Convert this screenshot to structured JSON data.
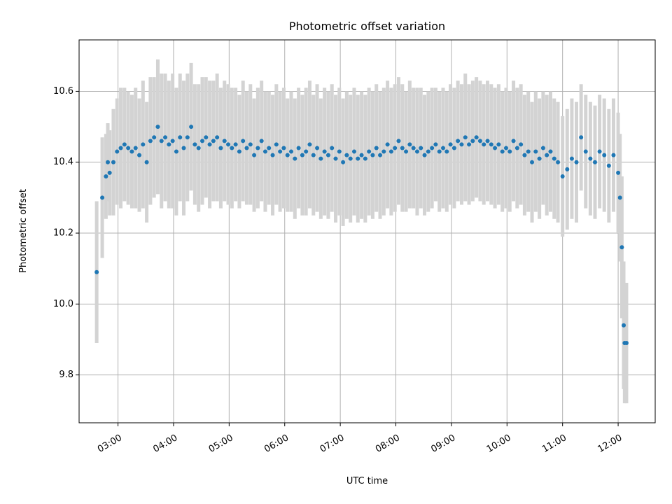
{
  "chart_data": {
    "type": "scatter",
    "title": "Photometric offset variation",
    "xlabel": "UTC time",
    "ylabel": "Photometric offset",
    "xlim": [
      "02:18",
      "12:40"
    ],
    "ylim": [
      9.665,
      10.745
    ],
    "x_ticks": [
      "03:00",
      "04:00",
      "05:00",
      "06:00",
      "07:00",
      "08:00",
      "09:00",
      "10:00",
      "11:00",
      "12:00"
    ],
    "y_ticks": [
      "9.8",
      "10.0",
      "10.2",
      "10.4",
      "10.6"
    ],
    "grid": true,
    "colors": {
      "points": "#1f77b4",
      "errorbars": "#d3d3d3",
      "grid": "#b0b0b0"
    },
    "series": [
      {
        "x": [
          "02:37",
          "02:43",
          "02:47",
          "02:49",
          "02:51",
          "02:55",
          "02:59",
          "03:03",
          "03:07",
          "03:11",
          "03:15",
          "03:19",
          "03:23",
          "03:27",
          "03:31",
          "03:35",
          "03:39",
          "03:43",
          "03:47",
          "03:51",
          "03:55",
          "03:59",
          "04:03",
          "04:07",
          "04:11",
          "04:15",
          "04:19",
          "04:23",
          "04:27",
          "04:31",
          "04:35",
          "04:39",
          "04:43",
          "04:47",
          "04:51",
          "04:55",
          "04:59",
          "05:03",
          "05:07",
          "05:11",
          "05:15",
          "05:19",
          "05:23",
          "05:27",
          "05:31",
          "05:35",
          "05:39",
          "05:43",
          "05:47",
          "05:51",
          "05:55",
          "05:59",
          "06:03",
          "06:07",
          "06:11",
          "06:15",
          "06:19",
          "06:23",
          "06:27",
          "06:31",
          "06:35",
          "06:39",
          "06:43",
          "06:47",
          "06:51",
          "06:55",
          "06:59",
          "07:03",
          "07:07",
          "07:11",
          "07:15",
          "07:19",
          "07:23",
          "07:27",
          "07:31",
          "07:35",
          "07:39",
          "07:43",
          "07:47",
          "07:51",
          "07:55",
          "07:59",
          "08:03",
          "08:07",
          "08:11",
          "08:15",
          "08:19",
          "08:23",
          "08:27",
          "08:31",
          "08:35",
          "08:39",
          "08:43",
          "08:47",
          "08:51",
          "08:55",
          "08:59",
          "09:03",
          "09:07",
          "09:11",
          "09:15",
          "09:19",
          "09:23",
          "09:27",
          "09:31",
          "09:35",
          "09:39",
          "09:43",
          "09:47",
          "09:51",
          "09:55",
          "09:59",
          "10:03",
          "10:07",
          "10:11",
          "10:15",
          "10:19",
          "10:23",
          "10:27",
          "10:31",
          "10:35",
          "10:39",
          "10:43",
          "10:47",
          "10:51",
          "10:55",
          "11:00",
          "11:05",
          "11:10",
          "11:15",
          "11:20",
          "11:25",
          "11:30",
          "11:35",
          "11:40",
          "11:45",
          "11:50",
          "11:55",
          "12:00",
          "12:02",
          "12:04",
          "12:06",
          "12:07",
          "12:09"
        ],
        "y": [
          10.09,
          10.3,
          10.36,
          10.4,
          10.37,
          10.4,
          10.43,
          10.44,
          10.45,
          10.44,
          10.43,
          10.44,
          10.42,
          10.45,
          10.4,
          10.46,
          10.47,
          10.5,
          10.46,
          10.47,
          10.45,
          10.46,
          10.43,
          10.47,
          10.44,
          10.47,
          10.5,
          10.45,
          10.44,
          10.46,
          10.47,
          10.45,
          10.46,
          10.47,
          10.44,
          10.46,
          10.45,
          10.44,
          10.45,
          10.43,
          10.46,
          10.44,
          10.45,
          10.42,
          10.44,
          10.46,
          10.43,
          10.44,
          10.42,
          10.45,
          10.43,
          10.44,
          10.42,
          10.43,
          10.41,
          10.44,
          10.42,
          10.43,
          10.45,
          10.42,
          10.44,
          10.41,
          10.43,
          10.42,
          10.44,
          10.41,
          10.43,
          10.4,
          10.42,
          10.41,
          10.43,
          10.41,
          10.42,
          10.41,
          10.43,
          10.42,
          10.44,
          10.42,
          10.43,
          10.45,
          10.43,
          10.44,
          10.46,
          10.44,
          10.43,
          10.45,
          10.44,
          10.43,
          10.44,
          10.42,
          10.43,
          10.44,
          10.45,
          10.43,
          10.44,
          10.43,
          10.45,
          10.44,
          10.46,
          10.45,
          10.47,
          10.45,
          10.46,
          10.47,
          10.46,
          10.45,
          10.46,
          10.45,
          10.44,
          10.45,
          10.43,
          10.44,
          10.43,
          10.46,
          10.44,
          10.45,
          10.42,
          10.43,
          10.4,
          10.43,
          10.41,
          10.44,
          10.42,
          10.43,
          10.41,
          10.4,
          10.36,
          10.38,
          10.41,
          10.4,
          10.47,
          10.43,
          10.41,
          10.4,
          10.43,
          10.42,
          10.39,
          10.42,
          10.37,
          10.3,
          10.16,
          9.94,
          9.89,
          9.89
        ],
        "err": [
          0.2,
          0.17,
          0.12,
          0.11,
          0.12,
          0.15,
          0.15,
          0.17,
          0.16,
          0.16,
          0.16,
          0.17,
          0.16,
          0.18,
          0.17,
          0.18,
          0.17,
          0.19,
          0.19,
          0.18,
          0.18,
          0.19,
          0.18,
          0.18,
          0.19,
          0.18,
          0.18,
          0.17,
          0.18,
          0.18,
          0.17,
          0.18,
          0.17,
          0.18,
          0.17,
          0.17,
          0.17,
          0.17,
          0.16,
          0.16,
          0.17,
          0.16,
          0.17,
          0.16,
          0.17,
          0.17,
          0.17,
          0.16,
          0.17,
          0.17,
          0.17,
          0.17,
          0.16,
          0.17,
          0.17,
          0.17,
          0.17,
          0.18,
          0.18,
          0.17,
          0.18,
          0.17,
          0.18,
          0.18,
          0.18,
          0.18,
          0.18,
          0.18,
          0.18,
          0.18,
          0.18,
          0.18,
          0.18,
          0.18,
          0.18,
          0.18,
          0.18,
          0.18,
          0.18,
          0.18,
          0.18,
          0.18,
          0.18,
          0.18,
          0.17,
          0.18,
          0.17,
          0.18,
          0.17,
          0.17,
          0.17,
          0.17,
          0.16,
          0.17,
          0.17,
          0.17,
          0.17,
          0.17,
          0.17,
          0.17,
          0.18,
          0.17,
          0.17,
          0.17,
          0.17,
          0.17,
          0.17,
          0.17,
          0.17,
          0.17,
          0.17,
          0.17,
          0.17,
          0.17,
          0.17,
          0.17,
          0.17,
          0.17,
          0.17,
          0.17,
          0.17,
          0.16,
          0.17,
          0.17,
          0.17,
          0.17,
          0.17,
          0.17,
          0.17,
          0.17,
          0.15,
          0.16,
          0.16,
          0.16,
          0.16,
          0.16,
          0.16,
          0.16,
          0.17,
          0.18,
          0.2,
          0.18,
          0.17,
          0.17
        ]
      }
    ]
  }
}
